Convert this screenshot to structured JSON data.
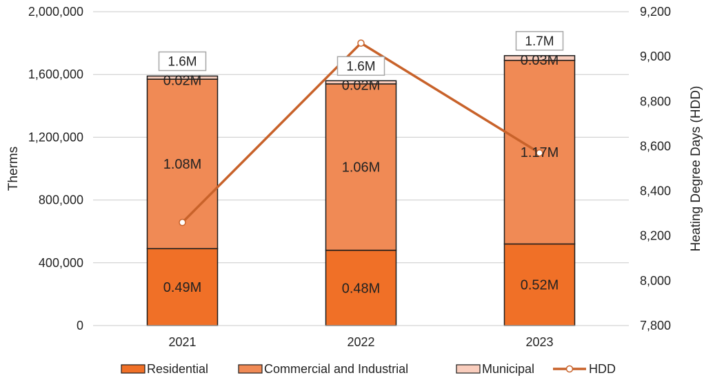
{
  "chart_data": {
    "type": "bar",
    "stacked": true,
    "categories": [
      "2021",
      "2022",
      "2023"
    ],
    "series": [
      {
        "name": "Residential",
        "values": [
          490000,
          480000,
          520000
        ],
        "labels": [
          "0.49M",
          "0.48M",
          "0.52M"
        ],
        "color": "#F07027"
      },
      {
        "name": "Commercial and Industrial",
        "values": [
          1080000,
          1060000,
          1170000
        ],
        "labels": [
          "1.08M",
          "1.06M",
          "1.17M"
        ],
        "color": "#F08A55"
      },
      {
        "name": "Municipal",
        "values": [
          20000,
          20000,
          30000
        ],
        "labels": [
          "0.02M",
          "0.02M",
          "0.03M"
        ],
        "color": "#F9CDBD"
      }
    ],
    "totals": [
      "1.6M",
      "1.6M",
      "1.7M"
    ],
    "line_series": {
      "name": "HDD",
      "axis": "right",
      "values": [
        8260,
        9060,
        8570
      ],
      "color": "#C8622A"
    },
    "ylabel": "Therms",
    "ylabel_right": "Heating Degree Days (HDD)",
    "ylim": [
      0,
      2000000
    ],
    "ylim_right": [
      7800,
      9200
    ],
    "yticks": [
      "0",
      "400,000",
      "800,000",
      "1,200,000",
      "1,600,000",
      "2,000,000"
    ],
    "yticks_right": [
      "7,800",
      "8,000",
      "8,200",
      "8,400",
      "8,600",
      "8,800",
      "9,000",
      "9,200"
    ],
    "grid": true,
    "legend_position": "bottom"
  }
}
